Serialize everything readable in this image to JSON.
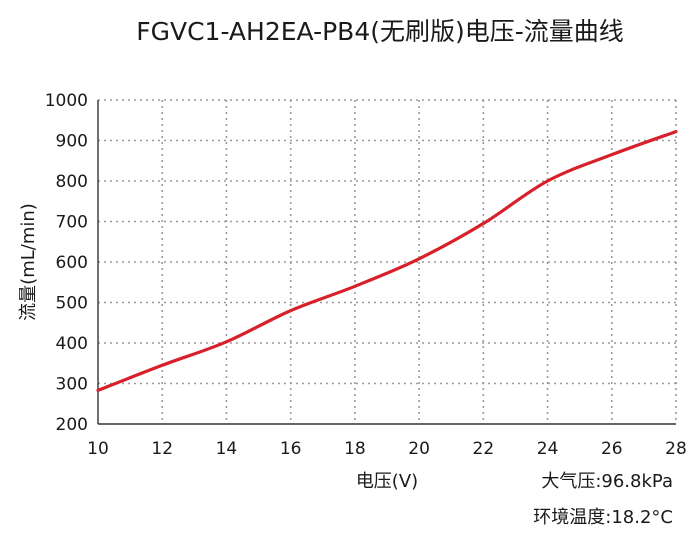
{
  "chart_data": {
    "type": "line",
    "title": "FGVC1-AH2EA-PB4(无刷版)电压-流量曲线",
    "xlabel": "电压(V)",
    "ylabel": "流量(mL/min)",
    "xlim": [
      10,
      28
    ],
    "ylim": [
      200,
      1000
    ],
    "x_ticks": [
      10,
      12,
      14,
      16,
      18,
      20,
      22,
      24,
      26,
      28
    ],
    "y_ticks": [
      200,
      300,
      400,
      500,
      600,
      700,
      800,
      900,
      1000
    ],
    "grid": true,
    "series": [
      {
        "color": "#d7202a",
        "x": [
          10,
          12,
          14,
          16,
          18,
          20,
          22,
          24,
          26,
          28
        ],
        "y": [
          283,
          345,
          403,
          480,
          540,
          608,
          695,
          800,
          865,
          922
        ]
      }
    ],
    "annotations": [
      "大气压:96.8kPa",
      "环境温度:18.2°C"
    ]
  }
}
